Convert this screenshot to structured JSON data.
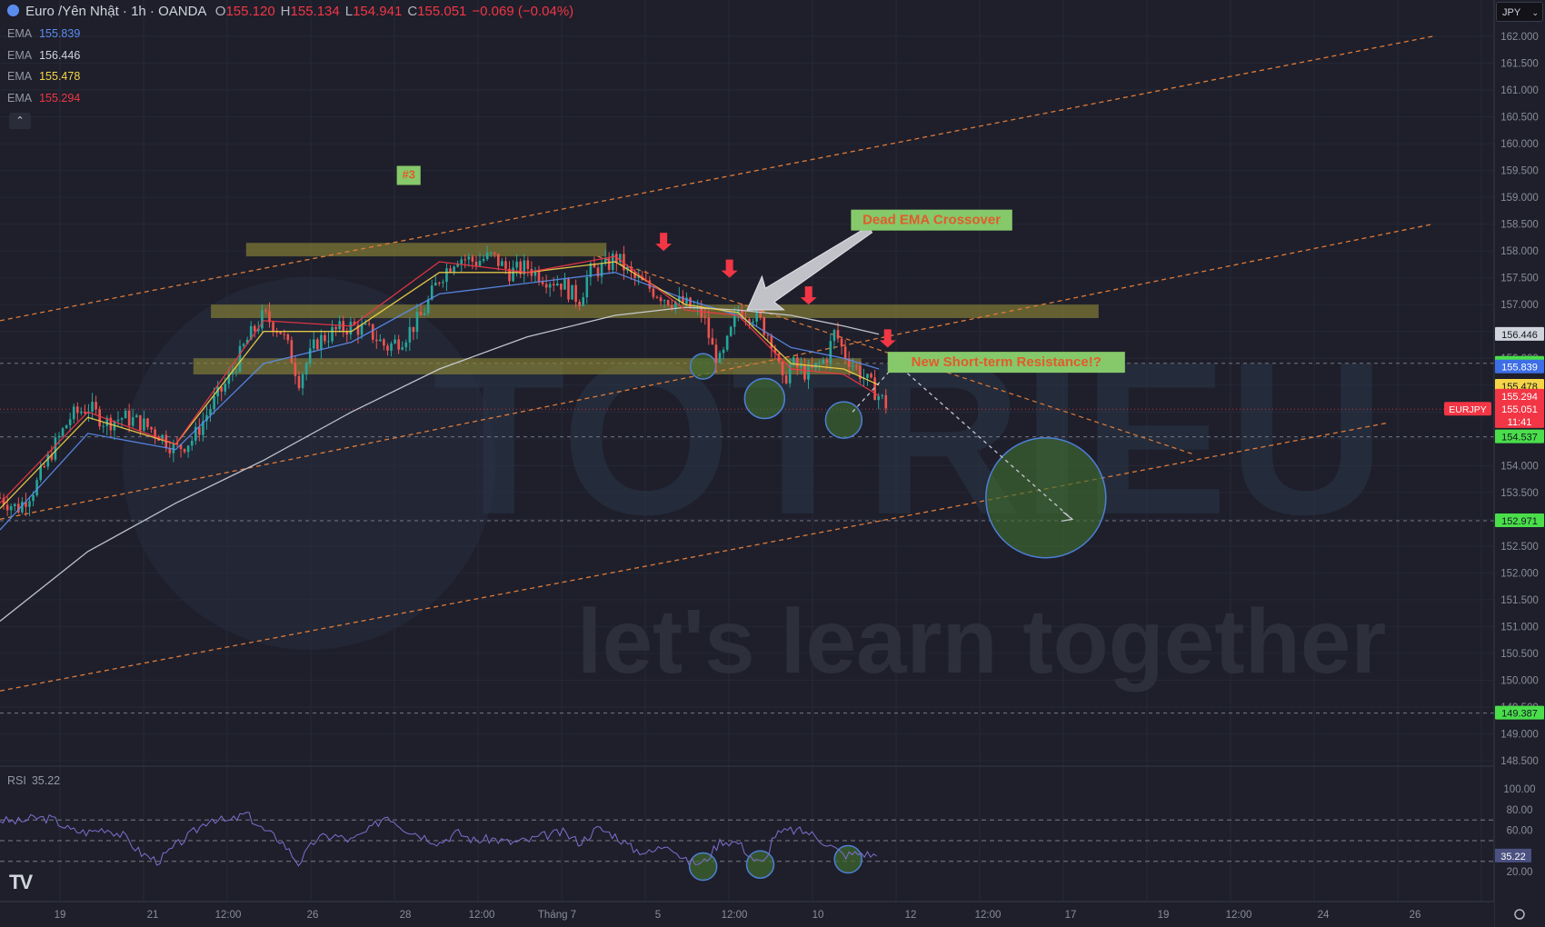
{
  "header": {
    "symbol_title": "Euro /Yên Nhật · 1h · OANDA",
    "ohlc": [
      {
        "key": "O",
        "value": "155.120"
      },
      {
        "key": "H",
        "value": "155.134"
      },
      {
        "key": "L",
        "value": "154.941"
      },
      {
        "key": "C",
        "value": "155.051"
      },
      {
        "key": "",
        "value": "−0.069 (−0.04%)"
      }
    ],
    "currency_button": "JPY"
  },
  "indicators": {
    "emas": [
      {
        "label": "EMA",
        "value": "155.839",
        "color": "#5b8def"
      },
      {
        "label": "EMA",
        "value": "156.446",
        "color": "#d1d4dc"
      },
      {
        "label": "EMA",
        "value": "155.478",
        "color": "#f5d547"
      },
      {
        "label": "EMA",
        "value": "155.294",
        "color": "#f23645"
      }
    ],
    "collapse_glyph": "⌃",
    "rsi": {
      "label": "RSI",
      "value": "35.22"
    }
  },
  "chart_data": {
    "type": "line",
    "subtype": "candlestick",
    "symbol": "EURJPY",
    "timeframe": "1h",
    "ylim": [
      148.5,
      162.0
    ],
    "price_ticks": [
      "162.000",
      "161.500",
      "161.000",
      "160.500",
      "160.000",
      "159.500",
      "159.000",
      "158.500",
      "158.000",
      "157.500",
      "157.000",
      "156.500",
      "156.000",
      "155.500",
      "155.000",
      "154.500",
      "154.000",
      "153.500",
      "153.000",
      "152.500",
      "152.000",
      "151.500",
      "151.000",
      "150.500",
      "150.000",
      "149.500",
      "149.000",
      "148.500"
    ],
    "time_ticks": [
      "19",
      "21",
      "12:00",
      "26",
      "28",
      "12:00",
      "Tháng 7",
      "5",
      "12:00",
      "10",
      "12",
      "12:00",
      "17",
      "19",
      "12:00",
      "24",
      "26"
    ],
    "price_path": [
      [
        0,
        153.4
      ],
      [
        2,
        153.2
      ],
      [
        4,
        153.6
      ],
      [
        6,
        154.3
      ],
      [
        8,
        154.9
      ],
      [
        10,
        155.1
      ],
      [
        12,
        154.8
      ],
      [
        14,
        154.9
      ],
      [
        16,
        154.8
      ],
      [
        18,
        154.6
      ],
      [
        20,
        154.3
      ],
      [
        22,
        154.5
      ],
      [
        24,
        155.1
      ],
      [
        26,
        155.6
      ],
      [
        28,
        156.3
      ],
      [
        30,
        156.8
      ],
      [
        32,
        156.5
      ],
      [
        33,
        156.1
      ],
      [
        34,
        155.6
      ],
      [
        36,
        156.3
      ],
      [
        38,
        156.5
      ],
      [
        40,
        156.6
      ],
      [
        42,
        156.5
      ],
      [
        44,
        156.2
      ],
      [
        46,
        156.4
      ],
      [
        48,
        156.8
      ],
      [
        50,
        157.5
      ],
      [
        52,
        157.9
      ],
      [
        54,
        157.8
      ],
      [
        56,
        157.9
      ],
      [
        58,
        157.6
      ],
      [
        60,
        157.7
      ],
      [
        62,
        157.5
      ],
      [
        64,
        157.4
      ],
      [
        65,
        157.2
      ],
      [
        66,
        157.1
      ],
      [
        67,
        157.6
      ],
      [
        69,
        157.7
      ],
      [
        70,
        157.9
      ],
      [
        72,
        157.5
      ],
      [
        74,
        157.3
      ],
      [
        76,
        157.1
      ],
      [
        78,
        157.0
      ],
      [
        80,
        156.8
      ],
      [
        81,
        156.2
      ],
      [
        82,
        155.9
      ],
      [
        83,
        156.4
      ],
      [
        84,
        156.9
      ],
      [
        86,
        156.8
      ],
      [
        88,
        156.3
      ],
      [
        89,
        155.5
      ],
      [
        90,
        155.9
      ],
      [
        92,
        155.7
      ],
      [
        94,
        156.0
      ],
      [
        95,
        156.5
      ],
      [
        96,
        156.1
      ],
      [
        98,
        155.7
      ],
      [
        100,
        155.3
      ],
      [
        101,
        155.1
      ]
    ],
    "ema_series": [
      {
        "value": 155.839,
        "color": "#5b8def",
        "path": [
          [
            0,
            152.8
          ],
          [
            10,
            154.6
          ],
          [
            20,
            154.3
          ],
          [
            30,
            155.9
          ],
          [
            40,
            156.3
          ],
          [
            50,
            157.2
          ],
          [
            60,
            157.4
          ],
          [
            70,
            157.6
          ],
          [
            78,
            157.1
          ],
          [
            84,
            156.8
          ],
          [
            90,
            156.2
          ],
          [
            96,
            156.0
          ],
          [
            100,
            155.8
          ]
        ]
      },
      {
        "value": 156.446,
        "color": "#d1d4dc",
        "path": [
          [
            0,
            151.1
          ],
          [
            10,
            152.4
          ],
          [
            20,
            153.3
          ],
          [
            30,
            154.1
          ],
          [
            40,
            155.0
          ],
          [
            50,
            155.8
          ],
          [
            60,
            156.4
          ],
          [
            70,
            156.8
          ],
          [
            78,
            156.95
          ],
          [
            84,
            156.9
          ],
          [
            90,
            156.8
          ],
          [
            96,
            156.6
          ],
          [
            100,
            156.45
          ]
        ]
      },
      {
        "value": 155.478,
        "color": "#f5d547",
        "path": [
          [
            0,
            153.2
          ],
          [
            10,
            154.9
          ],
          [
            20,
            154.4
          ],
          [
            30,
            156.5
          ],
          [
            40,
            156.5
          ],
          [
            50,
            157.6
          ],
          [
            60,
            157.6
          ],
          [
            70,
            157.8
          ],
          [
            78,
            157.0
          ],
          [
            84,
            156.85
          ],
          [
            90,
            155.9
          ],
          [
            96,
            155.8
          ],
          [
            100,
            155.5
          ]
        ]
      },
      {
        "value": 155.294,
        "color": "#f23645",
        "path": [
          [
            0,
            153.3
          ],
          [
            10,
            155.0
          ],
          [
            20,
            154.4
          ],
          [
            30,
            156.7
          ],
          [
            40,
            156.6
          ],
          [
            50,
            157.8
          ],
          [
            60,
            157.6
          ],
          [
            70,
            157.9
          ],
          [
            78,
            156.9
          ],
          [
            84,
            156.8
          ],
          [
            90,
            155.8
          ],
          [
            96,
            155.7
          ],
          [
            100,
            155.3
          ]
        ]
      }
    ],
    "price_labels": [
      {
        "text": "156.446",
        "value": 156.446,
        "bg": "#d1d4dc",
        "fg": "#131722"
      },
      {
        "text": "155.907",
        "value": 155.907,
        "bg": "#4ade4a",
        "fg": "#131722"
      },
      {
        "text": "155.839",
        "value": 155.839,
        "bg": "#3d6ee6",
        "fg": "#ffffff"
      },
      {
        "text": "155.478",
        "value": 155.478,
        "bg": "#f5d547",
        "fg": "#131722"
      },
      {
        "text": "155.294",
        "value": 155.294,
        "bg": "#f23645",
        "fg": "#ffffff"
      },
      {
        "text": "155.051",
        "value": 155.051,
        "bg": "#f23645",
        "fg": "#ffffff"
      },
      {
        "text": "11:41",
        "value": 154.82,
        "bg": "#f23645",
        "fg": "#ffffff"
      },
      {
        "text": "154.537",
        "value": 154.537,
        "bg": "#4ade4a",
        "fg": "#131722"
      },
      {
        "text": "152.971",
        "value": 152.971,
        "bg": "#4ade4a",
        "fg": "#131722"
      },
      {
        "text": "149.387",
        "value": 149.387,
        "bg": "#4ade4a",
        "fg": "#131722"
      }
    ],
    "symbol_tag": {
      "text": "EURJPY",
      "value": 155.051
    },
    "horizontal_levels": [
      155.907,
      154.537,
      152.971,
      149.387
    ],
    "zones": [
      {
        "from": 28,
        "to": 69,
        "low": 157.95,
        "high": 158.1
      },
      {
        "from": 24,
        "to": 125,
        "low": 156.8,
        "high": 156.95
      },
      {
        "from": 22,
        "to": 98,
        "low": 155.75,
        "high": 155.95
      }
    ],
    "channel_lines": [
      {
        "x1": 0,
        "y1": 156.7,
        "x2": 163,
        "y2": 162.0
      },
      {
        "x1": 0,
        "y1": 153.0,
        "x2": 163,
        "y2": 158.5
      },
      {
        "x1": 0,
        "y1": 149.8,
        "x2": 158,
        "y2": 154.8
      }
    ],
    "down_trendline": {
      "x1": 68,
      "y1": 157.9,
      "x2": 136,
      "y2": 154.2
    },
    "projection": [
      [
        97,
        155.0
      ],
      [
        102,
        155.9
      ],
      [
        122,
        153.0
      ]
    ],
    "circles": [
      {
        "x": 80,
        "price": 155.85,
        "r_px": 14
      },
      {
        "x": 87,
        "price": 155.25,
        "r_px": 22
      },
      {
        "x": 96,
        "price": 154.85,
        "r_px": 20
      },
      {
        "x": 119,
        "price": 153.4,
        "r_px": 66
      }
    ],
    "red_arrows": [
      {
        "x": 75.5,
        "price": 158.0
      },
      {
        "x": 83,
        "price": 157.5
      },
      {
        "x": 92,
        "price": 157.0
      },
      {
        "x": 101,
        "price": 156.2
      }
    ],
    "annotations": [
      {
        "text": "#3",
        "x": 46.5,
        "price": 159.4
      },
      {
        "text": "Dead EMA Crossover",
        "x": 106,
        "price": 158.55
      },
      {
        "text": "New Short-term Resistance!?",
        "x": 114.5,
        "price": 155.9
      }
    ],
    "callout_arrow": {
      "from_x": 99,
      "from_price": 158.4,
      "to_x": 85,
      "to_price": 156.9
    },
    "rsi": {
      "ylim": [
        0,
        100
      ],
      "ticks": [
        "100.00",
        "80.00",
        "60.00",
        "20.00"
      ],
      "levels": [
        70,
        50,
        30
      ],
      "current": 35.22,
      "path": [
        [
          0,
          70
        ],
        [
          2,
          68
        ],
        [
          4,
          72
        ],
        [
          6,
          71
        ],
        [
          8,
          60
        ],
        [
          10,
          58
        ],
        [
          12,
          62
        ],
        [
          14,
          55
        ],
        [
          16,
          38
        ],
        [
          18,
          30
        ],
        [
          20,
          45
        ],
        [
          22,
          58
        ],
        [
          24,
          72
        ],
        [
          26,
          68
        ],
        [
          28,
          76
        ],
        [
          30,
          60
        ],
        [
          32,
          50
        ],
        [
          34,
          28
        ],
        [
          36,
          52
        ],
        [
          38,
          55
        ],
        [
          40,
          50
        ],
        [
          42,
          60
        ],
        [
          44,
          75
        ],
        [
          46,
          62
        ],
        [
          48,
          55
        ],
        [
          50,
          48
        ],
        [
          52,
          58
        ],
        [
          54,
          50
        ],
        [
          56,
          52
        ],
        [
          58,
          48
        ],
        [
          60,
          50
        ],
        [
          62,
          55
        ],
        [
          64,
          58
        ],
        [
          66,
          48
        ],
        [
          68,
          62
        ],
        [
          70,
          55
        ],
        [
          72,
          42
        ],
        [
          74,
          38
        ],
        [
          76,
          48
        ],
        [
          78,
          30
        ],
        [
          80,
          28
        ],
        [
          82,
          50
        ],
        [
          84,
          48
        ],
        [
          86,
          30
        ],
        [
          87,
          28
        ],
        [
          88,
          55
        ],
        [
          90,
          60
        ],
        [
          92,
          58
        ],
        [
          94,
          48
        ],
        [
          96,
          36
        ],
        [
          98,
          38
        ],
        [
          100,
          35
        ]
      ],
      "circles": [
        {
          "x": 80,
          "v": 25
        },
        {
          "x": 86.5,
          "v": 27
        },
        {
          "x": 96.5,
          "v": 32
        }
      ]
    }
  },
  "watermark": {
    "brand": "TOTRIEU",
    "tagline": "let's learn together"
  },
  "logo": "TV"
}
